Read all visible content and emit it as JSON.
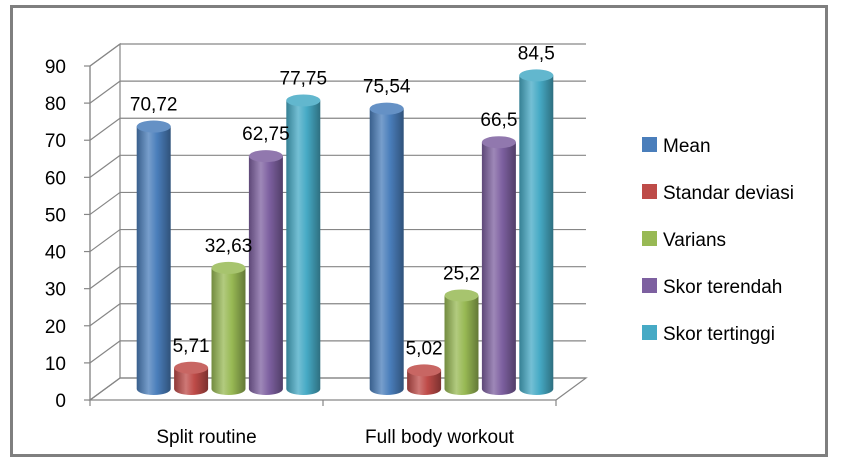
{
  "chart_data": {
    "type": "bar",
    "categories": [
      "Split routine",
      "Full body workout"
    ],
    "series": [
      {
        "name": "Mean",
        "color": "#4a7ebb",
        "values": [
          70.72,
          75.54
        ],
        "labels": [
          "70,72",
          "75,54"
        ]
      },
      {
        "name": "Standar deviasi",
        "color": "#be4b48",
        "values": [
          5.71,
          5.02
        ],
        "labels": [
          "5,71",
          "5,02"
        ]
      },
      {
        "name": "Varians",
        "color": "#98b954",
        "values": [
          32.63,
          25.2
        ],
        "labels": [
          "32,63",
          "25,2"
        ]
      },
      {
        "name": "Skor terendah",
        "color": "#7d60a0",
        "values": [
          62.75,
          66.5
        ],
        "labels": [
          "62,75",
          "66,5"
        ]
      },
      {
        "name": "Skor tertinggi",
        "color": "#46aac5",
        "values": [
          77.75,
          84.5
        ],
        "labels": [
          "77,75",
          "84,5"
        ]
      }
    ],
    "yticks": [
      "0",
      "10",
      "20",
      "30",
      "40",
      "50",
      "60",
      "70",
      "80",
      "90"
    ],
    "ylim": [
      0,
      90
    ],
    "grid": true,
    "legend": "right",
    "style": "3d-cylinder"
  }
}
